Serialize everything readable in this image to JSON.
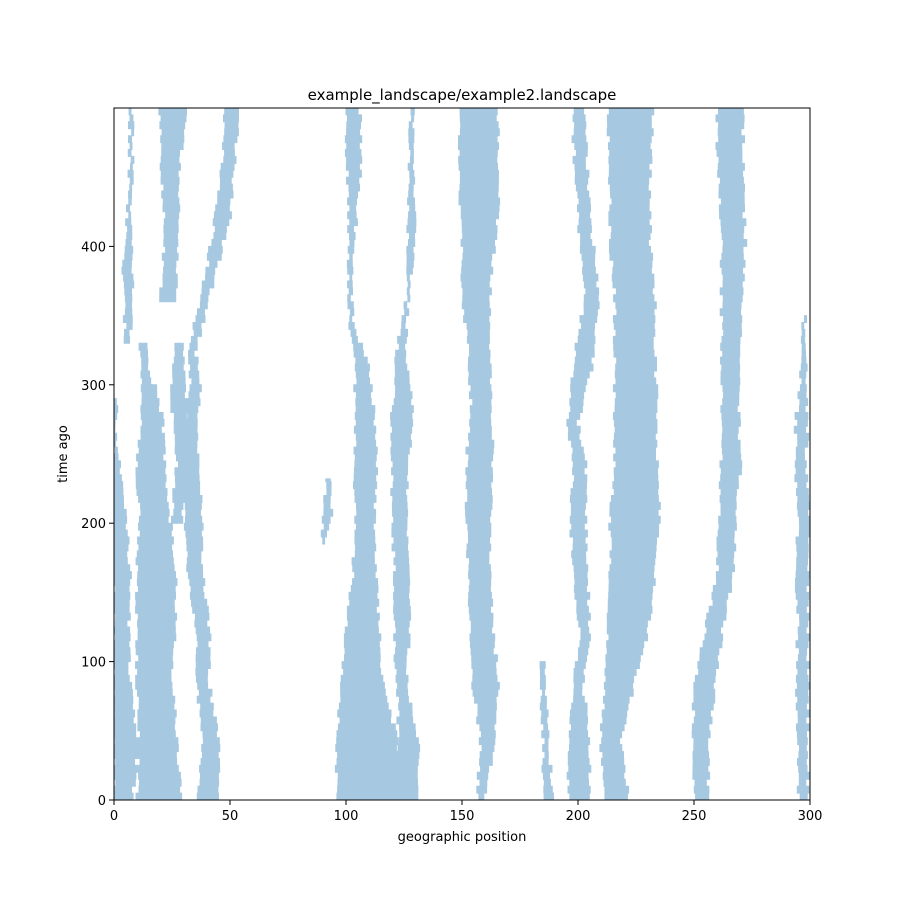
{
  "chart_data": {
    "type": "area",
    "title": "example_landscape/example2.landscape",
    "xlabel": "geographic position",
    "ylabel": "time ago",
    "xlim": [
      0,
      300
    ],
    "ylim": [
      0,
      500
    ],
    "xticks": [
      0,
      50,
      100,
      150,
      200,
      250,
      300
    ],
    "yticks": [
      0,
      100,
      200,
      300,
      400
    ],
    "grid": false,
    "fill_color": "#a6c8e0",
    "bands": [
      {
        "name": "band-1",
        "points": [
          [
            0,
            0,
            8
          ],
          [
            0,
            40,
            10
          ],
          [
            0,
            80,
            7
          ],
          [
            0,
            120,
            6
          ],
          [
            0,
            160,
            7
          ],
          [
            0,
            200,
            5
          ],
          [
            0,
            230,
            3
          ],
          [
            0,
            265,
            0
          ],
          [
            0,
            290,
            2
          ]
        ]
      },
      {
        "name": "band-2",
        "points": [
          [
            5,
            330,
            7
          ],
          [
            4,
            380,
            8
          ],
          [
            6,
            420,
            7
          ],
          [
            7,
            470,
            8
          ],
          [
            7,
            500,
            8
          ]
        ]
      },
      {
        "name": "band-3",
        "points": [
          [
            10,
            0,
            17
          ],
          [
            11,
            40,
            18
          ],
          [
            10,
            80,
            17
          ],
          [
            10,
            120,
            17
          ],
          [
            10,
            160,
            17
          ],
          [
            11,
            200,
            17
          ],
          [
            10,
            240,
            18
          ],
          [
            12,
            280,
            18
          ],
          [
            12,
            310,
            15
          ],
          [
            11,
            330,
            13
          ]
        ]
      },
      {
        "name": "band-4",
        "points": [
          [
            13,
            0,
            29
          ],
          [
            13,
            40,
            27
          ],
          [
            12,
            80,
            25
          ],
          [
            12,
            120,
            26
          ],
          [
            14,
            160,
            27
          ],
          [
            14,
            200,
            24
          ],
          [
            14,
            240,
            22
          ],
          [
            15,
            270,
            21
          ],
          [
            16,
            300,
            18
          ]
        ]
      },
      {
        "name": "band-5",
        "points": [
          [
            20,
            360,
            27
          ],
          [
            22,
            400,
            27
          ],
          [
            21,
            440,
            28
          ],
          [
            20,
            470,
            29
          ],
          [
            20,
            500,
            31
          ]
        ]
      },
      {
        "name": "band-6",
        "points": [
          [
            25,
            200,
            29
          ],
          [
            27,
            240,
            31
          ],
          [
            25,
            280,
            32
          ],
          [
            25,
            300,
            30
          ],
          [
            27,
            330,
            29
          ]
        ]
      },
      {
        "name": "band-7",
        "points": [
          [
            36,
            0,
            45
          ],
          [
            38,
            40,
            45
          ],
          [
            36,
            80,
            41
          ],
          [
            36,
            120,
            41
          ],
          [
            32,
            160,
            38
          ],
          [
            31,
            200,
            38
          ],
          [
            30,
            230,
            37
          ],
          [
            31,
            260,
            36
          ],
          [
            33,
            300,
            37
          ],
          [
            32,
            320,
            35
          ],
          [
            40,
            380,
            44
          ],
          [
            44,
            420,
            50
          ],
          [
            47,
            460,
            52
          ],
          [
            48,
            500,
            54
          ]
        ]
      },
      {
        "name": "band-8",
        "points": [
          [
            90,
            185,
            91
          ],
          [
            90,
            205,
            94
          ],
          [
            92,
            232,
            93
          ]
        ]
      },
      {
        "name": "band-9",
        "points": [
          [
            96,
            0,
            123
          ],
          [
            96,
            40,
            122
          ],
          [
            98,
            80,
            116
          ],
          [
            100,
            120,
            114
          ],
          [
            103,
            160,
            113
          ],
          [
            104,
            200,
            112
          ],
          [
            104,
            240,
            113
          ],
          [
            104,
            280,
            112
          ],
          [
            104,
            310,
            110
          ],
          [
            102,
            340,
            103
          ],
          [
            101,
            370,
            102
          ],
          [
            101,
            400,
            103
          ],
          [
            101,
            440,
            106
          ],
          [
            100,
            470,
            106
          ],
          [
            100,
            500,
            106
          ]
        ]
      },
      {
        "name": "band-10",
        "points": [
          [
            117,
            0,
            131
          ],
          [
            123,
            40,
            131
          ],
          [
            122,
            80,
            126
          ],
          [
            121,
            120,
            127
          ],
          [
            121,
            160,
            128
          ],
          [
            120,
            200,
            126
          ],
          [
            120,
            240,
            127
          ],
          [
            120,
            280,
            129
          ],
          [
            122,
            320,
            125
          ],
          [
            126,
            360,
            127
          ],
          [
            127,
            410,
            130
          ],
          [
            127,
            450,
            129
          ],
          [
            128,
            500,
            129
          ]
        ]
      },
      {
        "name": "band-11",
        "points": [
          [
            157,
            0,
            160
          ],
          [
            158,
            40,
            164
          ],
          [
            155,
            80,
            166
          ],
          [
            154,
            120,
            163
          ],
          [
            153,
            160,
            162
          ],
          [
            152,
            200,
            162
          ],
          [
            152,
            240,
            163
          ],
          [
            154,
            280,
            163
          ],
          [
            153,
            320,
            162
          ],
          [
            150,
            360,
            162
          ],
          [
            150,
            400,
            164
          ],
          [
            149,
            440,
            166
          ],
          [
            149,
            500,
            165
          ]
        ]
      },
      {
        "name": "band-12",
        "points": [
          [
            185,
            0,
            189
          ],
          [
            185,
            40,
            187
          ],
          [
            184,
            70,
            186
          ],
          [
            184,
            100,
            186
          ]
        ]
      },
      {
        "name": "band-13",
        "points": [
          [
            196,
            0,
            205
          ],
          [
            196,
            40,
            205
          ],
          [
            198,
            80,
            202
          ],
          [
            201,
            120,
            205
          ],
          [
            198,
            160,
            204
          ],
          [
            197,
            200,
            203
          ],
          [
            198,
            240,
            203
          ],
          [
            196,
            270,
            200
          ],
          [
            198,
            310,
            206
          ],
          [
            203,
            360,
            209
          ],
          [
            200,
            420,
            205
          ],
          [
            198,
            480,
            203
          ],
          [
            198,
            500,
            203
          ]
        ]
      },
      {
        "name": "band-14",
        "points": [
          [
            211,
            0,
            222
          ],
          [
            210,
            40,
            218
          ],
          [
            212,
            80,
            224
          ],
          [
            213,
            120,
            230
          ],
          [
            214,
            160,
            233
          ],
          [
            214,
            200,
            235
          ],
          [
            216,
            240,
            234
          ],
          [
            216,
            280,
            234
          ],
          [
            216,
            320,
            233
          ],
          [
            216,
            360,
            233
          ],
          [
            214,
            400,
            231
          ],
          [
            214,
            440,
            231
          ],
          [
            213,
            480,
            232
          ],
          [
            213,
            500,
            232
          ]
        ]
      },
      {
        "name": "band-15",
        "points": [
          [
            250,
            0,
            256
          ],
          [
            250,
            40,
            256
          ],
          [
            250,
            80,
            259
          ],
          [
            255,
            120,
            262
          ],
          [
            260,
            160,
            267
          ],
          [
            261,
            200,
            268
          ],
          [
            262,
            240,
            270
          ],
          [
            262,
            280,
            269
          ],
          [
            262,
            320,
            269
          ],
          [
            262,
            360,
            271
          ],
          [
            262,
            400,
            272
          ],
          [
            261,
            440,
            271
          ],
          [
            260,
            470,
            271
          ],
          [
            260,
            500,
            271
          ]
        ]
      },
      {
        "name": "band-16",
        "points": [
          [
            295,
            0,
            299
          ],
          [
            295,
            40,
            299
          ],
          [
            294,
            80,
            299
          ],
          [
            295,
            120,
            299
          ],
          [
            294,
            160,
            299
          ],
          [
            295,
            200,
            300
          ],
          [
            294,
            240,
            298
          ],
          [
            294,
            270,
            299
          ],
          [
            296,
            300,
            298
          ],
          [
            297,
            320,
            298
          ],
          [
            297,
            350,
            298
          ]
        ]
      }
    ]
  }
}
